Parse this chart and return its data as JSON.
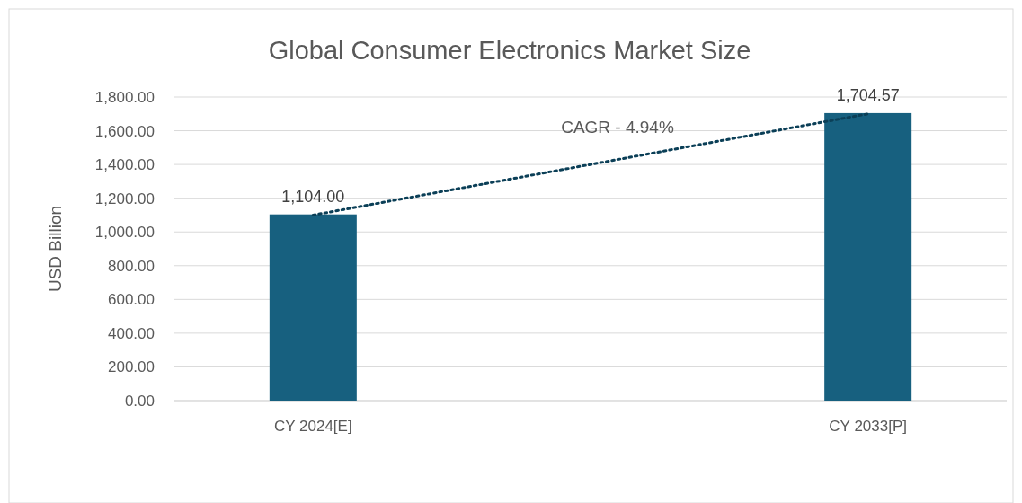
{
  "chart_data": {
    "type": "bar",
    "title": "Global Consumer Electronics Market Size",
    "ylabel": "USD Billion",
    "categories": [
      "CY 2024[E]",
      "CY 2033[P]"
    ],
    "series": [
      {
        "color": "#17607f",
        "values": [
          1104.0,
          1704.57
        ],
        "value_labels": [
          "1,104.00",
          "1,704.57"
        ]
      },
      {
        "type": "line",
        "color": "#0b3f57",
        "line_style": "dotted",
        "x": [
          "CY 2024[E]",
          "CY 2033[P]"
        ],
        "values": [
          1100,
          1700
        ]
      }
    ],
    "ylim": [
      0,
      1800
    ],
    "yticks": [
      {
        "value": 0,
        "label": "0.00"
      },
      {
        "value": 200,
        "label": "200.00"
      },
      {
        "value": 400,
        "label": "400.00"
      },
      {
        "value": 600,
        "label": "600.00"
      },
      {
        "value": 800,
        "label": "800.00"
      },
      {
        "value": 1000,
        "label": "1,000.00"
      },
      {
        "value": 1200,
        "label": "1,200.00"
      },
      {
        "value": 1400,
        "label": "1,400.00"
      },
      {
        "value": 1600,
        "label": "1,600.00"
      },
      {
        "value": 1800,
        "label": "1,800.00"
      }
    ],
    "grid": "y",
    "annotations": [
      "CAGR - 4.94%"
    ]
  }
}
